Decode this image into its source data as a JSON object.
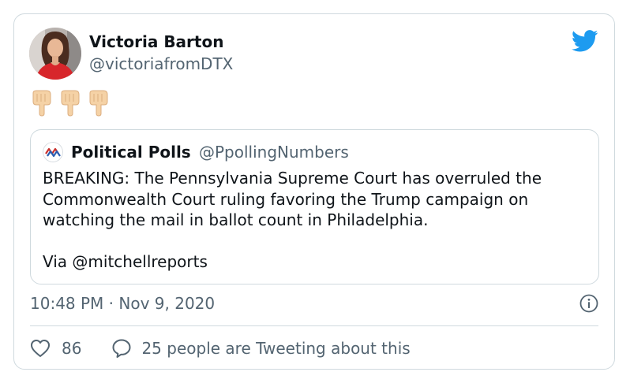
{
  "tweet": {
    "author_name": "Victoria Barton",
    "author_handle": "@victoriafromDTX",
    "body_emoji": [
      "👇",
      "👇",
      "👇"
    ],
    "timestamp": "10:48 PM · Nov 9, 2020",
    "likes": "86",
    "conversation_text": "25 people are Tweeting about this"
  },
  "quoted": {
    "author_name": "Political Polls",
    "author_handle": "@PpollingNumbers",
    "text": "BREAKING: The Pennsylvania Supreme Court has overruled the\nCommonwealth Court ruling favoring the Trump campaign on\nwatching the mail in ballot count in Philadelphia.\n\nVia @mitchellreports"
  },
  "icons": {
    "brand": "twitter-bird-icon",
    "info": "info-icon",
    "like": "heart-icon",
    "reply": "speech-bubble-icon"
  },
  "colors": {
    "twitter_blue": "#1d9bf0",
    "muted_text": "#536471",
    "border": "#cfd9de",
    "primary_text": "#0f1419"
  }
}
